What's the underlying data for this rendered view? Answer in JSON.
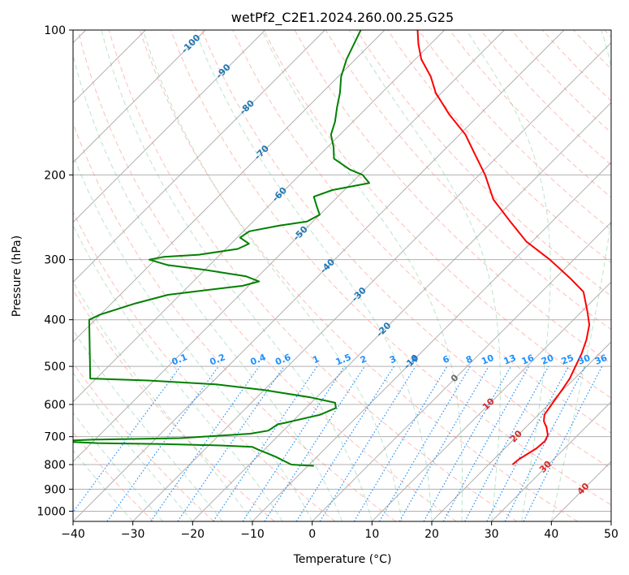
{
  "chart_data": {
    "type": "line",
    "title": "wetPf2_C2E1.2024.260.00.25.G25",
    "xlabel": "Temperature (°C)",
    "ylabel": "Pressure (hPa)",
    "xlim": [
      -40,
      50
    ],
    "ylim": [
      1050,
      100
    ],
    "y_scale": "log",
    "grid": true,
    "x_ticks": [
      "−40",
      "−30",
      "−20",
      "−10",
      "0",
      "10",
      "20",
      "30",
      "40",
      "50"
    ],
    "x_tick_values": [
      -40,
      -30,
      -20,
      -10,
      0,
      10,
      20,
      30,
      40,
      50
    ],
    "y_ticks": [
      "100",
      "200",
      "300",
      "400",
      "500",
      "600",
      "700",
      "800",
      "900",
      "1000"
    ],
    "y_tick_values": [
      100,
      200,
      300,
      400,
      500,
      600,
      700,
      800,
      900,
      1000
    ],
    "colors": {
      "temperature": "#ff0000",
      "dewpoint": "#008000",
      "dry_adiabat": "#fa8072",
      "moist_adiabat": "#3cb371",
      "mixing_ratio": "#1e90ff",
      "isotherm": "#808080",
      "isotherm_label": "#1f77b4",
      "temp_label": "#d62728"
    },
    "series": [
      {
        "key": "temperature",
        "points": [
          [
            24.0,
            800
          ],
          [
            24.2,
            780
          ],
          [
            25.3,
            740
          ],
          [
            25.5,
            715
          ],
          [
            25.0,
            695
          ],
          [
            23.5,
            670
          ],
          [
            22.0,
            650
          ],
          [
            21.0,
            630
          ],
          [
            20.5,
            600
          ],
          [
            19.8,
            560
          ],
          [
            19.2,
            530
          ],
          [
            18.3,
            505
          ],
          [
            17.0,
            470
          ],
          [
            15.5,
            440
          ],
          [
            13.5,
            410
          ],
          [
            11.0,
            385
          ],
          [
            7.0,
            350
          ],
          [
            2.5,
            328
          ],
          [
            -4.0,
            300
          ],
          [
            -11.0,
            275
          ],
          [
            -17.0,
            250
          ],
          [
            -23.5,
            225
          ],
          [
            -29.0,
            200
          ],
          [
            -34.5,
            180
          ],
          [
            -39.0,
            165
          ],
          [
            -45.0,
            150
          ],
          [
            -51.0,
            135
          ],
          [
            -54.5,
            125
          ],
          [
            -59.0,
            115
          ],
          [
            -62.0,
            107
          ],
          [
            -64.5,
            100
          ]
        ]
      },
      {
        "key": "dewpoint",
        "points": [
          [
            -9.0,
            805
          ],
          [
            -13.0,
            800
          ],
          [
            -17.0,
            770
          ],
          [
            -21.0,
            745
          ],
          [
            -22.5,
            735
          ],
          [
            -28.0,
            730
          ],
          [
            -38.0,
            725
          ],
          [
            -49.0,
            722
          ],
          [
            -57.0,
            715
          ],
          [
            -50.0,
            710
          ],
          [
            -36.0,
            705
          ],
          [
            -25.0,
            690
          ],
          [
            -22.5,
            680
          ],
          [
            -22.0,
            660
          ],
          [
            -21.0,
            655
          ],
          [
            -16.5,
            630
          ],
          [
            -15.0,
            610
          ],
          [
            -16.0,
            595
          ],
          [
            -21.0,
            580
          ],
          [
            -30.0,
            560
          ],
          [
            -39.0,
            545
          ],
          [
            -51.0,
            535
          ],
          [
            -61.0,
            530
          ],
          [
            -71.0,
            400
          ],
          [
            -70.0,
            390
          ],
          [
            -66.0,
            370
          ],
          [
            -62.0,
            355
          ],
          [
            -57.0,
            348
          ],
          [
            -51.0,
            340
          ],
          [
            -49.0,
            333
          ],
          [
            -52.0,
            325
          ],
          [
            -60.0,
            315
          ],
          [
            -67.0,
            308
          ],
          [
            -71.0,
            300
          ],
          [
            -69.0,
            296
          ],
          [
            -63.5,
            293
          ],
          [
            -58.0,
            285
          ],
          [
            -57.0,
            278
          ],
          [
            -59.5,
            270
          ],
          [
            -59.0,
            262
          ],
          [
            -55.0,
            255
          ],
          [
            -51.0,
            250
          ],
          [
            -50.0,
            242
          ],
          [
            -52.0,
            232
          ],
          [
            -54.0,
            222
          ],
          [
            -52.0,
            215
          ],
          [
            -47.0,
            208
          ],
          [
            -49.5,
            200
          ],
          [
            -52.5,
            195
          ],
          [
            -57.0,
            185
          ],
          [
            -59.0,
            175
          ],
          [
            -61.5,
            165
          ],
          [
            -63.0,
            155
          ],
          [
            -65.0,
            145
          ],
          [
            -67.0,
            135
          ],
          [
            -69.5,
            125
          ],
          [
            -71.5,
            115
          ],
          [
            -74.0,
            100
          ]
        ]
      }
    ],
    "isotherm_labels": [
      "-100",
      "-90",
      "-80",
      "-70",
      "-60",
      "-50",
      "-40",
      "-30",
      "-20",
      "-10"
    ],
    "isotherm_label_values": [
      -100,
      -90,
      -80,
      -70,
      -60,
      -50,
      -40,
      -30,
      -20,
      -10
    ],
    "zero_label": "0",
    "temp_labels": [
      "10",
      "20",
      "30",
      "40"
    ],
    "temp_label_values": [
      10,
      20,
      30,
      40
    ],
    "mixing_ratio_labels": [
      "0.1",
      "0.2",
      "0.4",
      "0.6",
      "1",
      "1.5",
      "2",
      "3",
      "4",
      "6",
      "8",
      "10",
      "13",
      "16",
      "20",
      "25",
      "30",
      "36"
    ],
    "mixing_ratio_values": [
      0.1,
      0.2,
      0.4,
      0.6,
      1,
      1.5,
      2,
      3,
      4,
      6,
      8,
      10,
      13,
      16,
      20,
      25,
      30,
      36
    ]
  }
}
